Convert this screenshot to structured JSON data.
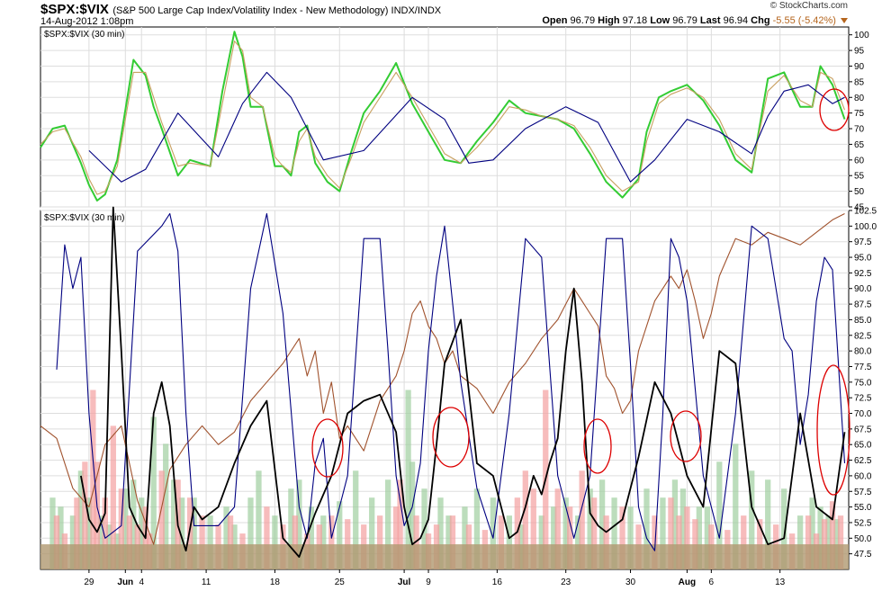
{
  "header": {
    "symbol": "$SPX:$VIX",
    "description": "(S&P 500 Large Cap Index/Volatility Index - New Methodology) INDX/INDX",
    "date": "14-Aug-2012 1:08pm",
    "logo": "© StockCharts.com",
    "open_label": "Open",
    "open": "96.79",
    "high_label": "High",
    "high": "97.18",
    "low_label": "Low",
    "low": "96.79",
    "last_label": "Last",
    "last": "96.94",
    "chg_label": "Chg",
    "chg": "-5.55 (-5.42%)",
    "chg_color": "#b5651d"
  },
  "chart_data": [
    {
      "type": "line",
      "panel_label": "$SPX:$VIX (30 min)",
      "ylim": [
        45,
        102.5
      ],
      "yticks": [
        45,
        50,
        55,
        60,
        65,
        70,
        75,
        80,
        85,
        90,
        95,
        100
      ],
      "series": [
        {
          "color": "#33cc33",
          "x": [
            0,
            3,
            6,
            10,
            12,
            14,
            16,
            19,
            23,
            26,
            28,
            30,
            34,
            37,
            42,
            45,
            48,
            50,
            52,
            55,
            58,
            60,
            62,
            64,
            66,
            68,
            71,
            74,
            77,
            80,
            84,
            88,
            92,
            96,
            100,
            104,
            108,
            112,
            116,
            120,
            124,
            128,
            132,
            136,
            140,
            144,
            148,
            150,
            153,
            156,
            160,
            164,
            168,
            172,
            176,
            180,
            184,
            188,
            191,
            193,
            196,
            199
          ],
          "y": [
            64,
            70,
            71,
            59,
            52,
            47,
            49,
            60,
            92,
            87,
            77,
            70,
            55,
            60,
            58,
            82,
            101,
            93,
            77,
            77,
            58,
            58,
            55,
            69,
            71,
            59,
            53,
            50,
            63,
            75,
            82,
            91,
            78,
            69,
            60,
            59,
            66,
            72,
            79,
            75,
            74,
            73,
            70,
            62,
            53,
            48,
            54,
            69,
            80,
            82,
            84,
            79,
            71,
            60,
            56,
            86,
            88,
            77,
            77,
            90,
            84,
            73
          ]
        },
        {
          "color": "#c8a060",
          "x": [
            0,
            3,
            6,
            10,
            12,
            14,
            16,
            19,
            23,
            26,
            28,
            30,
            34,
            37,
            42,
            45,
            48,
            50,
            52,
            55,
            58,
            60,
            62,
            64,
            66,
            68,
            71,
            74,
            77,
            80,
            84,
            88,
            92,
            96,
            100,
            104,
            108,
            112,
            116,
            120,
            124,
            128,
            132,
            136,
            140,
            144,
            148,
            150,
            153,
            156,
            160,
            164,
            168,
            172,
            176,
            180,
            184,
            188,
            191,
            193,
            196,
            199
          ],
          "y": [
            65,
            69,
            70,
            61,
            54,
            49,
            50,
            58,
            88,
            88,
            80,
            72,
            58,
            59,
            58,
            78,
            98,
            95,
            80,
            77,
            61,
            58,
            56,
            66,
            70,
            61,
            55,
            51,
            61,
            72,
            80,
            88,
            80,
            71,
            62,
            59,
            64,
            70,
            77,
            76,
            74,
            73,
            71,
            64,
            55,
            50,
            53,
            66,
            78,
            81,
            83,
            80,
            73,
            62,
            57,
            82,
            87,
            79,
            77,
            88,
            86,
            76
          ]
        },
        {
          "color": "#000080",
          "x": [
            12,
            20,
            26,
            34,
            44,
            50,
            56,
            62,
            70,
            80,
            92,
            100,
            106,
            112,
            120,
            130,
            138,
            146,
            152,
            160,
            168,
            176,
            180,
            184,
            190,
            196,
            199
          ],
          "y": [
            63,
            53,
            57,
            75,
            61,
            78,
            88,
            80,
            60,
            63,
            80,
            73,
            59,
            60,
            70,
            77,
            72,
            53,
            60,
            73,
            69,
            62,
            74,
            82,
            84,
            78,
            80
          ]
        }
      ]
    },
    {
      "type": "line",
      "panel_label": "$SPX:$VIX (30 min)",
      "ylim": [
        45,
        102.5
      ],
      "yticks": [
        47.5,
        50.0,
        52.5,
        55.0,
        57.5,
        60.0,
        62.5,
        65.0,
        67.5,
        70.0,
        72.5,
        75.0,
        77.5,
        80.0,
        82.5,
        85.0,
        87.5,
        90.0,
        92.5,
        95.0,
        97.5,
        100.0,
        102.5
      ],
      "categories": [
        "29",
        "Jun",
        "4",
        "11",
        "18",
        "25",
        "Jul",
        "9",
        "16",
        "23",
        "30",
        "Aug",
        "6",
        "13"
      ],
      "category_x": [
        12,
        21,
        25,
        41,
        58,
        74,
        90,
        96,
        113,
        130,
        146,
        160,
        166,
        183
      ],
      "series": [
        {
          "color": "#a0522d",
          "x": [
            0,
            4,
            8,
            12,
            16,
            20,
            24,
            28,
            32,
            36,
            40,
            44,
            48,
            52,
            56,
            60,
            64,
            66,
            68,
            70,
            72,
            74,
            76,
            80,
            84,
            88,
            90,
            92,
            94,
            96,
            98,
            100,
            102,
            104,
            108,
            112,
            116,
            120,
            124,
            128,
            132,
            134,
            136,
            138,
            140,
            142,
            144,
            146,
            148,
            152,
            156,
            158,
            160,
            162,
            164,
            166,
            168,
            172,
            176,
            180,
            184,
            188,
            192,
            196,
            199
          ],
          "y": [
            68,
            66,
            58,
            55,
            65,
            68,
            56,
            49,
            61,
            65,
            68,
            65,
            67,
            72,
            75,
            78,
            82,
            76,
            80,
            70,
            75,
            66,
            68,
            64,
            72,
            76,
            80,
            86,
            88,
            84,
            82,
            78,
            80,
            76,
            74,
            70,
            75,
            78,
            82,
            85,
            90,
            88,
            86,
            84,
            76,
            74,
            70,
            72,
            80,
            88,
            92,
            90,
            93,
            88,
            82,
            86,
            92,
            98,
            97,
            99,
            98,
            97,
            99,
            101,
            102
          ]
        },
        {
          "color": "#000080",
          "x": [
            4,
            6,
            8,
            10,
            12,
            14,
            16,
            20,
            24,
            30,
            32,
            34,
            36,
            38,
            44,
            48,
            52,
            56,
            60,
            64,
            66,
            68,
            70,
            72,
            76,
            80,
            84,
            86,
            88,
            90,
            92,
            94,
            96,
            98,
            100,
            104,
            108,
            112,
            116,
            120,
            124,
            128,
            132,
            136,
            140,
            144,
            146,
            148,
            150,
            152,
            154,
            156,
            158,
            160,
            164,
            168,
            172,
            176,
            180,
            184,
            186,
            188,
            190,
            192,
            194,
            196,
            199
          ],
          "y": [
            77,
            97,
            90,
            95,
            70,
            55,
            50,
            52,
            96,
            100,
            102,
            96,
            70,
            52,
            52,
            55,
            90,
            102,
            86,
            55,
            50,
            62,
            66,
            50,
            60,
            98,
            98,
            80,
            60,
            52,
            55,
            62,
            80,
            92,
            100,
            75,
            58,
            50,
            70,
            98,
            95,
            60,
            50,
            60,
            98,
            98,
            78,
            55,
            50,
            48,
            70,
            98,
            95,
            88,
            60,
            50,
            70,
            100,
            98,
            82,
            80,
            65,
            73,
            88,
            95,
            93,
            62
          ]
        },
        {
          "color": "#000000",
          "x": [
            10,
            12,
            14,
            16,
            18,
            20,
            22,
            24,
            26,
            28,
            30,
            32,
            34,
            36,
            38,
            40,
            44,
            48,
            52,
            56,
            60,
            64,
            68,
            72,
            76,
            80,
            84,
            88,
            90,
            92,
            94,
            96,
            98,
            100,
            104,
            108,
            112,
            116,
            118,
            120,
            122,
            124,
            126,
            128,
            130,
            132,
            134,
            136,
            138,
            140,
            144,
            148,
            152,
            156,
            160,
            164,
            168,
            172,
            176,
            180,
            184,
            188,
            192,
            196,
            199
          ],
          "y": [
            60,
            53,
            51,
            54,
            103,
            80,
            55,
            52,
            50,
            70,
            75,
            68,
            52,
            48,
            55,
            53,
            55,
            62,
            68,
            72,
            50,
            47,
            54,
            60,
            70,
            72,
            73,
            67,
            55,
            49,
            50,
            53,
            65,
            78,
            85,
            62,
            60,
            50,
            51,
            55,
            60,
            57,
            62,
            66,
            80,
            90,
            75,
            54,
            52,
            51,
            53,
            63,
            75,
            70,
            60,
            55,
            80,
            78,
            55,
            49,
            50,
            70,
            55,
            53,
            67
          ]
        }
      ],
      "volume_pink_x": [
        4,
        6,
        9,
        11,
        13,
        14,
        16,
        18,
        20,
        22,
        24,
        26,
        27,
        30,
        34,
        37,
        40,
        44,
        47,
        50,
        56,
        60,
        63,
        66,
        69,
        72,
        76,
        80,
        84,
        88,
        89,
        93,
        96,
        98,
        102,
        106,
        110,
        114,
        118,
        120,
        122,
        125,
        128,
        131,
        134,
        137,
        140,
        144,
        148,
        152,
        156,
        158,
        160,
        162,
        166,
        170,
        174,
        178,
        182,
        186,
        190,
        192,
        194,
        196,
        198
      ],
      "volume_pink_v": [
        30,
        20,
        40,
        60,
        100,
        60,
        40,
        80,
        45,
        30,
        25,
        35,
        20,
        55,
        50,
        40,
        30,
        25,
        30,
        20,
        35,
        25,
        30,
        20,
        25,
        30,
        28,
        25,
        30,
        35,
        50,
        30,
        20,
        25,
        30,
        25,
        22,
        30,
        40,
        55,
        45,
        100,
        45,
        35,
        55,
        40,
        30,
        35,
        25,
        30,
        40,
        30,
        35,
        28,
        25,
        22,
        30,
        28,
        25,
        20,
        30,
        20,
        28,
        38,
        30
      ],
      "volume_green_x": [
        3,
        5,
        8,
        10,
        12,
        15,
        17,
        19,
        21,
        23,
        25,
        28,
        31,
        33,
        35,
        38,
        42,
        46,
        48,
        52,
        54,
        58,
        62,
        64,
        67,
        70,
        74,
        78,
        82,
        86,
        91,
        92,
        95,
        99,
        101,
        105,
        108,
        112,
        116,
        119,
        124,
        127,
        130,
        133,
        136,
        139,
        142,
        146,
        150,
        154,
        157,
        159,
        163,
        165,
        168,
        172,
        176,
        180,
        184,
        188,
        191,
        193,
        195,
        197
      ],
      "volume_green_v": [
        40,
        35,
        30,
        55,
        40,
        30,
        25,
        20,
        45,
        50,
        40,
        85,
        70,
        50,
        40,
        40,
        30,
        35,
        25,
        40,
        55,
        30,
        45,
        50,
        35,
        30,
        38,
        55,
        40,
        50,
        100,
        60,
        45,
        40,
        30,
        35,
        45,
        40,
        30,
        25,
        30,
        35,
        40,
        30,
        45,
        50,
        40,
        35,
        45,
        40,
        50,
        45,
        35,
        35,
        60,
        70,
        55,
        50,
        45,
        30,
        40,
        35,
        30,
        28
      ]
    }
  ]
}
